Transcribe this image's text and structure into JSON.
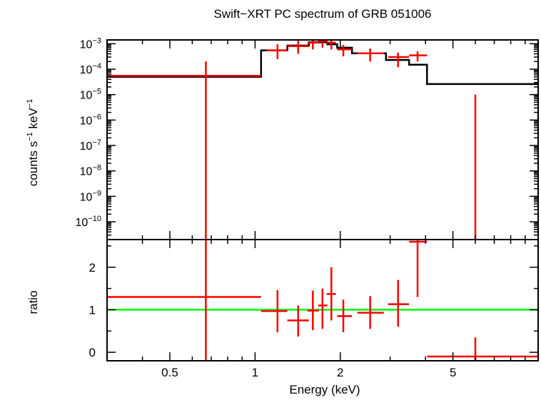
{
  "chart_data": {
    "title": "Swift−XRT PC spectrum of GRB 051006",
    "type": "scatter",
    "xlabel": "Energy (keV)",
    "xscale": "log",
    "xlim": [
      0.3,
      10
    ],
    "x_ticks": [
      {
        "value": 0.5,
        "label": "0.5"
      },
      {
        "value": 1,
        "label": "1"
      },
      {
        "value": 2,
        "label": "2"
      },
      {
        "value": 5,
        "label": "5"
      }
    ],
    "panels": [
      {
        "id": "spectrum",
        "ylabel": {
          "base": "counts s",
          "exp1": "−1",
          "mid": " keV",
          "exp2": "−1"
        },
        "yscale": "log",
        "ylim_log10": [
          -10.7,
          -2.85
        ],
        "y_ticks": [
          {
            "value": 0.001,
            "base": "10",
            "exp": "−3"
          },
          {
            "value": 0.0001,
            "base": "10",
            "exp": "−4"
          },
          {
            "value": 1e-05,
            "base": "10",
            "exp": "−5"
          },
          {
            "value": 1e-06,
            "base": "10",
            "exp": "−6"
          },
          {
            "value": 1e-07,
            "base": "10",
            "exp": "−7"
          },
          {
            "value": 1e-08,
            "base": "10",
            "exp": "−8"
          },
          {
            "value": 1e-09,
            "base": "10",
            "exp": "−9"
          },
          {
            "value": 1e-10,
            "base": "10",
            "exp": "−10"
          }
        ],
        "data": [
          {
            "x": 0.67,
            "x_lo": 0.3,
            "x_hi": 1.05,
            "y": 5.5e-05,
            "y_lo": 1e-11,
            "y_hi": 0.0002
          },
          {
            "x": 1.2,
            "x_lo": 1.1,
            "x_hi": 1.3,
            "y": 0.00055,
            "y_lo": 0.00025,
            "y_hi": 0.00095
          },
          {
            "x": 1.42,
            "x_lo": 1.3,
            "x_hi": 1.55,
            "y": 0.0008,
            "y_lo": 0.0004,
            "y_hi": 0.0013
          },
          {
            "x": 1.6,
            "x_lo": 1.53,
            "x_hi": 1.68,
            "y": 0.0011,
            "y_lo": 0.0006,
            "y_hi": 0.0017
          },
          {
            "x": 1.73,
            "x_lo": 1.67,
            "x_hi": 1.8,
            "y": 0.0013,
            "y_lo": 0.0007,
            "y_hi": 0.0019
          },
          {
            "x": 1.86,
            "x_lo": 1.79,
            "x_hi": 1.93,
            "y": 0.0011,
            "y_lo": 0.0006,
            "y_hi": 0.0016
          },
          {
            "x": 2.05,
            "x_lo": 1.95,
            "x_hi": 2.2,
            "y": 0.0006,
            "y_lo": 0.00032,
            "y_hi": 0.0009
          },
          {
            "x": 2.55,
            "x_lo": 2.3,
            "x_hi": 2.85,
            "y": 0.00042,
            "y_lo": 0.0002,
            "y_hi": 0.00065
          },
          {
            "x": 3.2,
            "x_lo": 2.95,
            "x_hi": 3.5,
            "y": 0.0003,
            "y_lo": 0.00012,
            "y_hi": 0.00045
          },
          {
            "x": 3.75,
            "x_lo": 3.5,
            "x_hi": 4.05,
            "y": 0.00035,
            "y_lo": 0.0002,
            "y_hi": 0.0005
          },
          {
            "x": 6.0,
            "x_lo": 6.0,
            "x_hi": 6.0,
            "y": 2e-11,
            "y_lo": 1e-11,
            "y_hi": 1e-05
          }
        ],
        "model_steps": [
          {
            "x0": 0.3,
            "x1": 1.05,
            "y": 5e-05
          },
          {
            "x0": 1.05,
            "x1": 1.3,
            "y": 0.00055
          },
          {
            "x0": 1.3,
            "x1": 1.55,
            "y": 0.00085
          },
          {
            "x0": 1.55,
            "x1": 1.8,
            "y": 0.00115
          },
          {
            "x0": 1.8,
            "x1": 1.95,
            "y": 0.00095
          },
          {
            "x0": 1.95,
            "x1": 2.2,
            "y": 0.0007
          },
          {
            "x0": 2.2,
            "x1": 2.9,
            "y": 0.00042
          },
          {
            "x0": 2.9,
            "x1": 3.5,
            "y": 0.00023
          },
          {
            "x0": 3.5,
            "x1": 4.05,
            "y": 0.00015
          },
          {
            "x0": 4.05,
            "x1": 10.0,
            "y": 2.6e-05
          }
        ]
      },
      {
        "id": "ratio",
        "ylabel": "ratio",
        "yscale": "linear",
        "ylim": [
          -0.2,
          2.65
        ],
        "y_ticks": [
          {
            "value": 0,
            "label": "0"
          },
          {
            "value": 1,
            "label": "1"
          },
          {
            "value": 2,
            "label": "2"
          }
        ],
        "reference_line": 1,
        "data": [
          {
            "x": 0.67,
            "x_lo": 0.3,
            "x_hi": 1.05,
            "y": 1.3,
            "y_lo": -0.2,
            "y_hi": 2.65
          },
          {
            "x": 1.2,
            "x_lo": 1.05,
            "x_hi": 1.3,
            "y": 0.97,
            "y_lo": 0.47,
            "y_hi": 1.46
          },
          {
            "x": 1.42,
            "x_lo": 1.3,
            "x_hi": 1.55,
            "y": 0.75,
            "y_lo": 0.37,
            "y_hi": 1.1
          },
          {
            "x": 1.6,
            "x_lo": 1.53,
            "x_hi": 1.68,
            "y": 0.98,
            "y_lo": 0.52,
            "y_hi": 1.45
          },
          {
            "x": 1.73,
            "x_lo": 1.67,
            "x_hi": 1.8,
            "y": 1.1,
            "y_lo": 0.55,
            "y_hi": 1.5
          },
          {
            "x": 1.86,
            "x_lo": 1.79,
            "x_hi": 1.93,
            "y": 1.37,
            "y_lo": 0.75,
            "y_hi": 2.0
          },
          {
            "x": 2.05,
            "x_lo": 1.95,
            "x_hi": 2.2,
            "y": 0.85,
            "y_lo": 0.47,
            "y_hi": 1.24
          },
          {
            "x": 2.55,
            "x_lo": 2.3,
            "x_hi": 2.85,
            "y": 0.93,
            "y_lo": 0.55,
            "y_hi": 1.32
          },
          {
            "x": 3.2,
            "x_lo": 2.95,
            "x_hi": 3.5,
            "y": 1.13,
            "y_lo": 0.6,
            "y_hi": 1.7
          },
          {
            "x": 3.75,
            "x_lo": 3.5,
            "x_hi": 4.05,
            "y": 2.6,
            "y_lo": 1.3,
            "y_hi": 2.65
          },
          {
            "x": 6.0,
            "x_lo": 4.05,
            "x_hi": 10.0,
            "y": -0.1,
            "y_lo": -0.2,
            "y_hi": 0.35
          }
        ]
      }
    ],
    "colors": {
      "data": "#ff0000",
      "model": "#000000",
      "reference": "#00ff00",
      "axes": "#000000"
    }
  }
}
